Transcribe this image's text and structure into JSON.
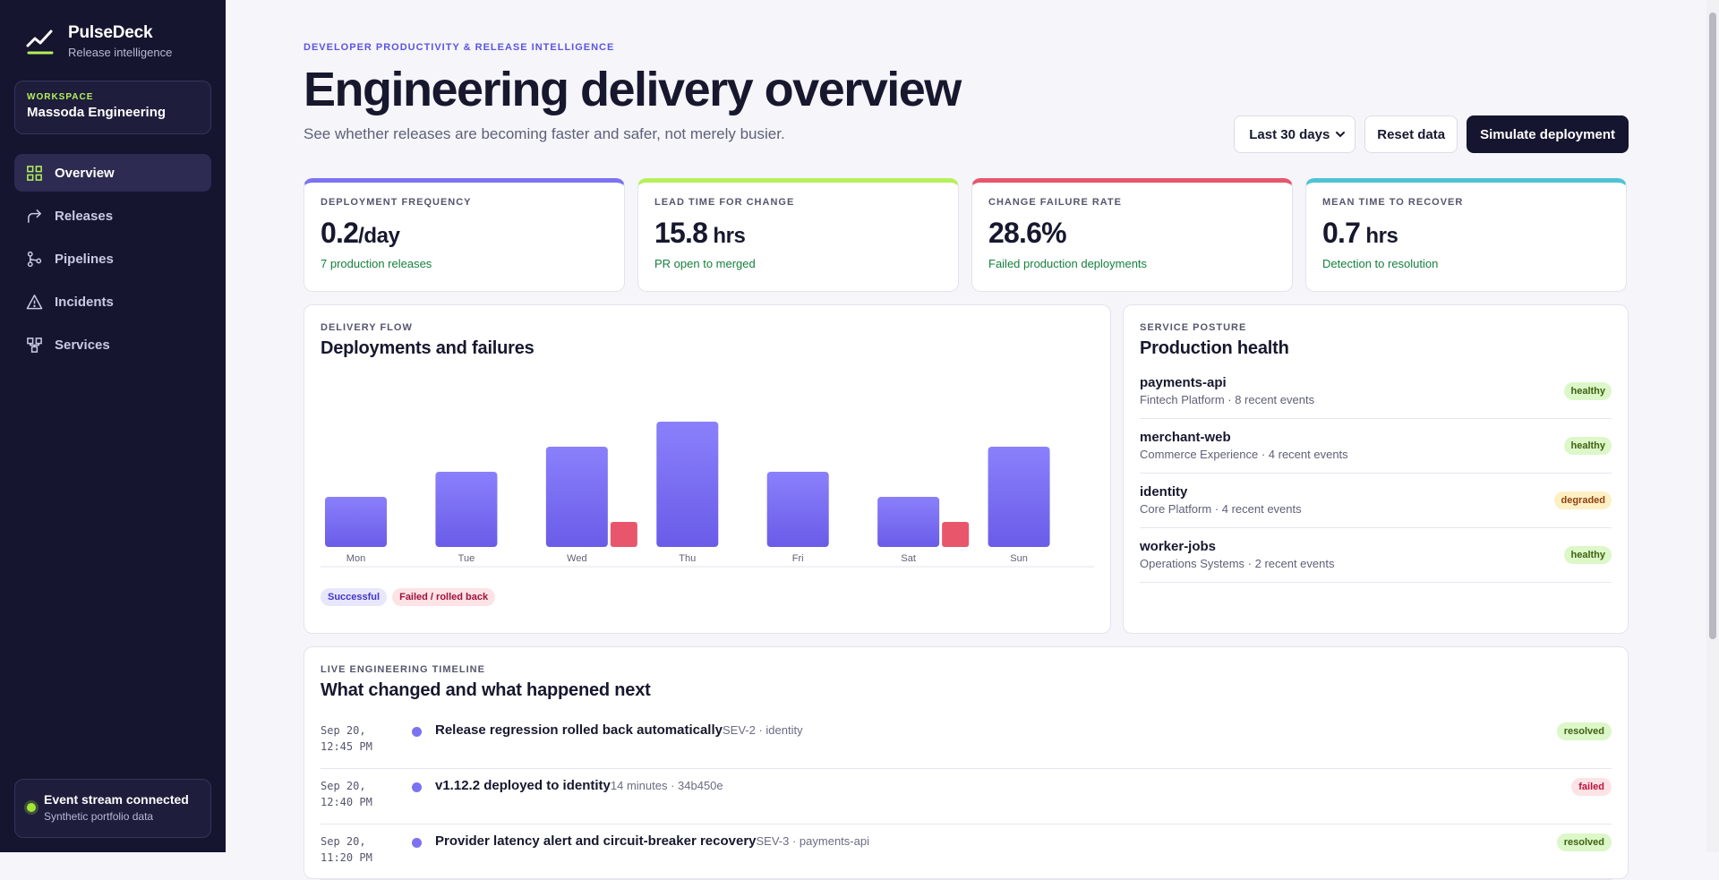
{
  "brand": {
    "name": "PulseDeck",
    "tagline": "Release intelligence"
  },
  "workspace": {
    "label": "WORKSPACE",
    "name": "Massoda Engineering"
  },
  "nav": [
    {
      "label": "Overview",
      "icon": "grid-icon",
      "active": true
    },
    {
      "label": "Releases",
      "icon": "share-arrow-icon"
    },
    {
      "label": "Pipelines",
      "icon": "pipeline-icon"
    },
    {
      "label": "Incidents",
      "icon": "warning-triangle-icon"
    },
    {
      "label": "Services",
      "icon": "services-icon"
    }
  ],
  "stream": {
    "title": "Event stream connected",
    "subtitle": "Synthetic portfolio data"
  },
  "header": {
    "eyebrow": "DEVELOPER PRODUCTIVITY & RELEASE INTELLIGENCE",
    "title": "Engineering delivery overview",
    "subtitle": "See whether releases are becoming faster and safer, not merely busier.",
    "range": "Last 30 days",
    "reset_label": "Reset data",
    "simulate_label": "Simulate deployment"
  },
  "kpis": [
    {
      "label": "DEPLOYMENT FREQUENCY",
      "value": "0.2",
      "unit": "/day",
      "note": "7 production releases",
      "color": "#7c72f2"
    },
    {
      "label": "LEAD TIME FOR CHANGE",
      "value": "15.8",
      "unit": " hrs",
      "note": "PR open to merged",
      "color": "#b5f05a"
    },
    {
      "label": "CHANGE FAILURE RATE",
      "value": "28.6%",
      "unit": "",
      "note": "Failed production deployments",
      "color": "#e8566c"
    },
    {
      "label": "MEAN TIME TO RECOVER",
      "value": "0.7",
      "unit": " hrs",
      "note": "Detection to resolution",
      "color": "#4fc3d6"
    }
  ],
  "flow": {
    "eyebrow": "DELIVERY FLOW",
    "title": "Deployments and failures",
    "legend_success": "Successful",
    "legend_failed": "Failed / rolled back"
  },
  "chart_data": {
    "type": "bar",
    "categories": [
      "Mon",
      "Tue",
      "Wed",
      "Thu",
      "Fri",
      "Sat",
      "Sun"
    ],
    "series": [
      {
        "name": "Successful",
        "values": [
          2,
          3,
          4,
          5,
          3,
          2,
          4
        ],
        "color": "#7b6ff5"
      },
      {
        "name": "Failed / rolled back",
        "values": [
          0,
          0,
          1,
          0,
          0,
          1,
          0
        ],
        "color": "#e8566c"
      }
    ],
    "ylim": [
      0,
      5
    ]
  },
  "posture": {
    "eyebrow": "SERVICE POSTURE",
    "title": "Production health",
    "services": [
      {
        "name": "payments-api",
        "meta": "Fintech Platform · 8 recent events",
        "status": "healthy"
      },
      {
        "name": "merchant-web",
        "meta": "Commerce Experience · 4 recent events",
        "status": "healthy"
      },
      {
        "name": "identity",
        "meta": "Core Platform · 4 recent events",
        "status": "degraded"
      },
      {
        "name": "worker-jobs",
        "meta": "Operations Systems · 2 recent events",
        "status": "healthy"
      }
    ]
  },
  "timeline": {
    "eyebrow": "LIVE ENGINEERING TIMELINE",
    "title": "What changed and what happened next",
    "events": [
      {
        "time": "Sep 20, 12:45 PM",
        "text": "Release regression rolled back automatically",
        "meta": "SEV-2 · identity",
        "status": "resolved"
      },
      {
        "time": "Sep 20, 12:40 PM",
        "text": "v1.12.2 deployed to identity",
        "meta": "14 minutes · 34b450e",
        "status": "failed"
      },
      {
        "time": "Sep 20, 11:20 PM",
        "text": "Provider latency alert and circuit-breaker recovery",
        "meta": "SEV-3 · payments-api",
        "status": "resolved"
      }
    ]
  }
}
